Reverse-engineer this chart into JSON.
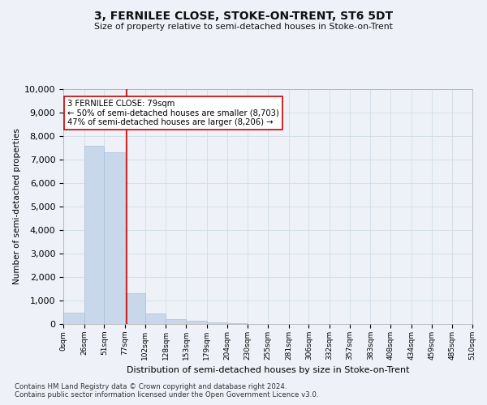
{
  "title": "3, FERNILEE CLOSE, STOKE-ON-TRENT, ST6 5DT",
  "subtitle": "Size of property relative to semi-detached houses in Stoke-on-Trent",
  "xlabel": "Distribution of semi-detached houses by size in Stoke-on-Trent",
  "ylabel": "Number of semi-detached properties",
  "footnote1": "Contains HM Land Registry data © Crown copyright and database right 2024.",
  "footnote2": "Contains public sector information licensed under the Open Government Licence v3.0.",
  "bin_edges": [
    0,
    26,
    51,
    77,
    102,
    128,
    153,
    179,
    204,
    230,
    255,
    281,
    306,
    332,
    357,
    383,
    408,
    434,
    459,
    485,
    510
  ],
  "bin_labels": [
    "0sqm",
    "26sqm",
    "51sqm",
    "77sqm",
    "102sqm",
    "128sqm",
    "153sqm",
    "179sqm",
    "204sqm",
    "230sqm",
    "255sqm",
    "281sqm",
    "306sqm",
    "332sqm",
    "357sqm",
    "383sqm",
    "408sqm",
    "434sqm",
    "459sqm",
    "485sqm",
    "510sqm"
  ],
  "bar_heights": [
    500,
    7600,
    7300,
    1300,
    450,
    200,
    150,
    80,
    30,
    0,
    0,
    0,
    0,
    0,
    0,
    0,
    0,
    0,
    0,
    0
  ],
  "bar_color": "#c8d8ea",
  "bar_edge_color": "#a8c0d8",
  "property_size": 79,
  "vline_color": "#cc0000",
  "vline_label": "3 FERNILEE CLOSE: 79sqm",
  "annotation_smaller": "← 50% of semi-detached houses are smaller (8,703)",
  "annotation_larger": "47% of semi-detached houses are larger (8,206) →",
  "annotation_box_color": "#ffffff",
  "annotation_box_edge": "#cc0000",
  "ylim": [
    0,
    10000
  ],
  "yticks": [
    0,
    1000,
    2000,
    3000,
    4000,
    5000,
    6000,
    7000,
    8000,
    9000,
    10000
  ],
  "grid_color": "#d0dce8",
  "background_color": "#eef2f8"
}
